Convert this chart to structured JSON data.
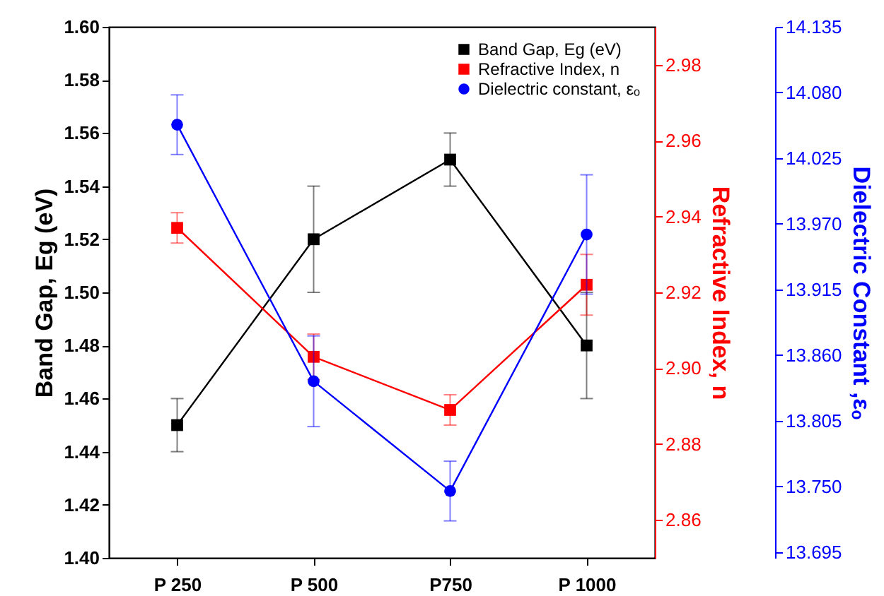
{
  "chart_data": {
    "type": "line",
    "ylabel": "Band Gap, Eg (eV)",
    "y2label": "Refractive Index, n",
    "y3label": "Dielectric Constant ,εₒ",
    "categories": [
      "P 250",
      "P 500",
      "P750",
      "P 1000"
    ],
    "series": [
      {
        "name": "Band Gap, Eg (eV)",
        "color": "#000000",
        "marker": "square",
        "values": [
          1.45,
          1.52,
          1.55,
          1.48
        ],
        "errors": [
          0.01,
          0.02,
          0.01,
          0.02
        ]
      },
      {
        "name": "Refractive Index, n",
        "color": "#ff0000",
        "marker": "square",
        "axis": "y2",
        "values": [
          2.937,
          2.903,
          2.889,
          2.922
        ],
        "errors": [
          0.004,
          0.006,
          0.004,
          0.008
        ]
      },
      {
        "name": "Dielectric constant, εₒ",
        "color": "#0000ff",
        "marker": "circle",
        "axis": "y3",
        "values": [
          14.053,
          13.838,
          13.746,
          13.961
        ],
        "errors": [
          0.025,
          0.038,
          0.025,
          0.05
        ]
      }
    ],
    "ylim": [
      1.4,
      1.6
    ],
    "yticks": [
      {
        "value": 1.4,
        "label": "1.40"
      },
      1.42,
      1.44,
      1.46,
      1.48,
      {
        "value": 1.5,
        "label": "1.50"
      },
      1.52,
      1.54,
      1.56,
      1.58,
      {
        "value": 1.6,
        "label": "1.60"
      }
    ],
    "y2lim": [
      2.85,
      2.99
    ],
    "y2ticks": [
      2.86,
      2.88,
      {
        "value": 2.9,
        "label": "2.90"
      },
      2.92,
      2.94,
      2.96,
      2.98
    ],
    "y3lim": [
      13.69,
      14.135
    ],
    "y3ticks": [
      13.695,
      {
        "value": 13.75,
        "label": "13.750"
      },
      13.805,
      {
        "value": 13.86,
        "label": "13.860"
      },
      13.915,
      {
        "value": 13.97,
        "label": "13.970"
      },
      14.025,
      {
        "value": 14.08,
        "label": "14.080"
      },
      14.135
    ],
    "legend": "top right",
    "grid": false
  }
}
